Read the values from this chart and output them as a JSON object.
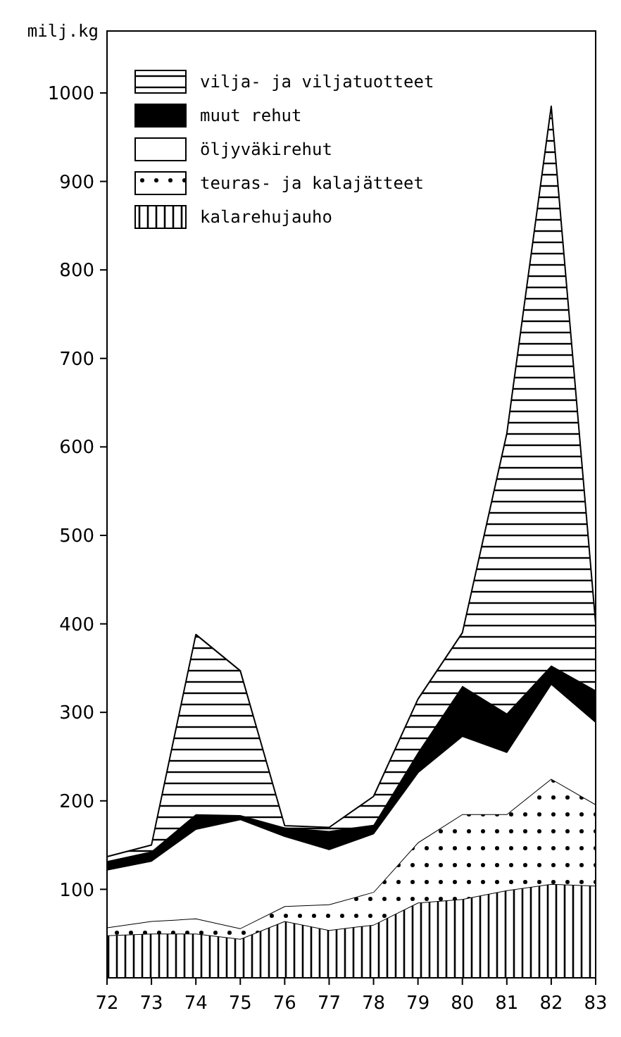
{
  "chart_data": {
    "type": "area",
    "stacked": true,
    "ylabel": "milj.kg",
    "x": [
      72,
      73,
      74,
      75,
      76,
      77,
      78,
      79,
      80,
      81,
      82,
      83
    ],
    "xlim": [
      72,
      83
    ],
    "xticks": [
      72,
      73,
      74,
      75,
      76,
      77,
      78,
      79,
      80,
      81,
      82,
      83
    ],
    "ylim": [
      0,
      1070
    ],
    "yticks": [
      100,
      200,
      300,
      400,
      500,
      600,
      700,
      800,
      900,
      1000
    ],
    "legend": "top left",
    "grid": false,
    "series": [
      {
        "name": "kalarehujauho",
        "color": "#000000",
        "values": [
          48,
          50,
          50,
          44,
          64,
          54,
          60,
          85,
          89,
          99,
          106,
          104
        ]
      },
      {
        "name": "teuras- ja kalajätteet",
        "color": "#000000",
        "values": [
          9,
          14,
          17,
          12,
          17,
          29,
          37,
          68,
          96,
          86,
          119,
          92
        ]
      },
      {
        "name": "öljyväkirehut",
        "color": "#ffffff",
        "values": [
          65,
          68,
          101,
          123,
          79,
          62,
          66,
          79,
          88,
          70,
          107,
          93
        ]
      },
      {
        "name": "muut rehut",
        "color": "#000000",
        "values": [
          10,
          11,
          17,
          5,
          10,
          21,
          10,
          23,
          57,
          44,
          21,
          36
        ]
      },
      {
        "name": "vilja- ja viljatuotteet",
        "color": "#000000",
        "values": [
          5,
          7,
          203,
          163,
          2,
          4,
          32,
          60,
          60,
          316,
          632,
          75
        ]
      }
    ]
  }
}
